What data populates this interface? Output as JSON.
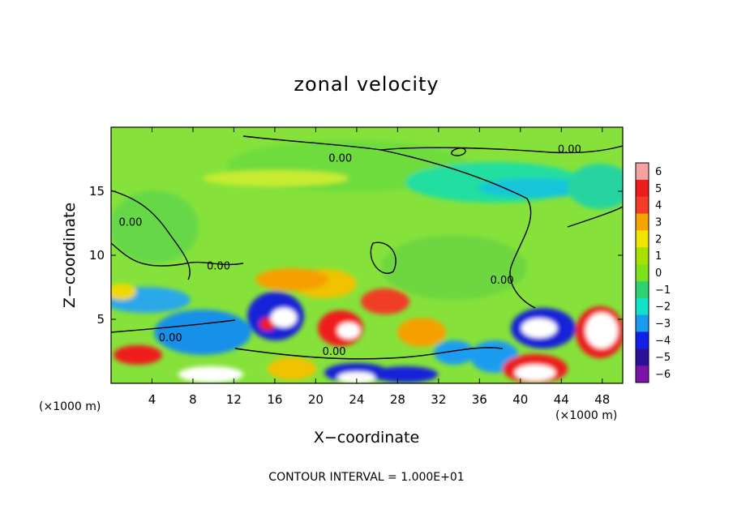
{
  "chart_data": {
    "type": "heatmap",
    "title": "zonal velocity",
    "xlabel": "X−coordinate",
    "ylabel": "Z−coordinate",
    "x_unit_label": "(×1000 m)",
    "x_unit_label_right": "(×1000 m)",
    "xlim": [
      0,
      50
    ],
    "ylim": [
      0,
      20
    ],
    "x_ticks": [
      4,
      8,
      12,
      16,
      20,
      24,
      28,
      32,
      36,
      40,
      44,
      48
    ],
    "x_tick_labels": [
      "4",
      "8",
      "12",
      "16",
      "20",
      "24",
      "28",
      "32",
      "36",
      "40",
      "44",
      "48"
    ],
    "y_ticks": [
      5,
      10,
      15
    ],
    "y_tick_labels": [
      "5",
      "10",
      "15"
    ],
    "colorbar": {
      "min": -6,
      "max": 6,
      "levels": [
        6,
        5,
        4,
        3,
        2,
        1,
        0,
        -1,
        -2,
        -3,
        -4,
        -5,
        -6
      ],
      "tick_labels": [
        "6",
        "5",
        "4",
        "3",
        "2",
        "1",
        "0",
        "−1",
        "−2",
        "−3",
        "−4",
        "−5",
        "−6"
      ],
      "colors": [
        "#f4a3a3",
        "#ee1c1c",
        "#f43c28",
        "#f7a400",
        "#f0e400",
        "#a8e000",
        "#7ee21a",
        "#2ed26e",
        "#10e2c8",
        "#1a9cf0",
        "#1020e8",
        "#2a1098",
        "#7a14a8"
      ]
    },
    "contour_labels": [
      {
        "text": "0.00",
        "x": 22.4,
        "y": 17.3
      },
      {
        "text": "0.00",
        "x": 44.8,
        "y": 18.0
      },
      {
        "text": "0.00",
        "x": 1.9,
        "y": 12.3
      },
      {
        "text": "0.00",
        "x": 10.5,
        "y": 8.9
      },
      {
        "text": "0.00",
        "x": 38.2,
        "y": 7.8
      },
      {
        "text": "0.00",
        "x": 5.8,
        "y": 3.3
      },
      {
        "text": "0.00",
        "x": 21.8,
        "y": 2.2
      }
    ],
    "contour_interval_text": "CONTOUR INTERVAL = 1.000E+01"
  }
}
